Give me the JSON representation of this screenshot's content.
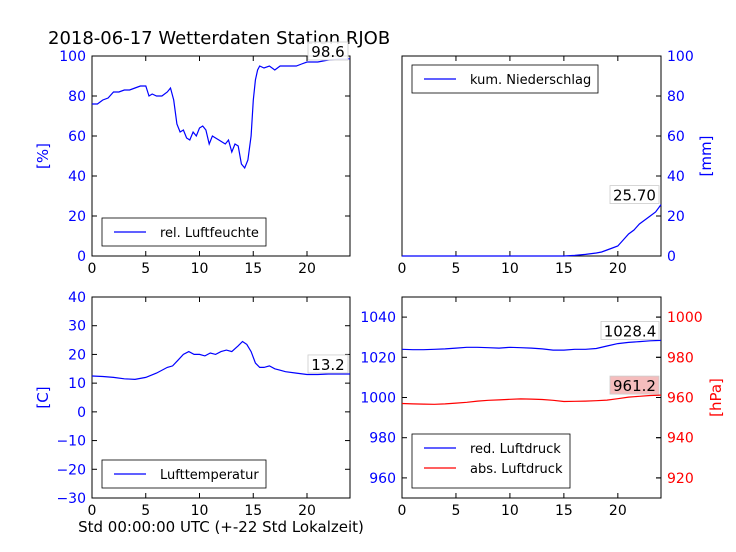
{
  "title": "2018-06-17 Wetterdaten Station RJOB",
  "colors": {
    "blue": "#0000ff",
    "red": "#ff0000",
    "annot_bg": "#f4b6b6"
  },
  "chart_data": [
    {
      "type": "line",
      "panel": "top-left",
      "ylabel": "[%]",
      "xlim": [
        0,
        24
      ],
      "ylim": [
        0,
        100
      ],
      "xticks": [
        0,
        5,
        10,
        15,
        20
      ],
      "yticks": [
        0,
        20,
        40,
        60,
        80,
        100
      ],
      "legend": "rel. Luftfeuchte",
      "legend_placement": "lower-center",
      "annotation": "98.6",
      "series": [
        {
          "name": "rel. Luftfeuchte",
          "color": "#0000ff",
          "x": [
            0,
            0.5,
            1,
            1.5,
            2,
            2.5,
            3,
            3.5,
            4,
            4.5,
            5,
            5.3,
            5.6,
            6,
            6.5,
            7,
            7.3,
            7.6,
            7.9,
            8.2,
            8.5,
            8.8,
            9.1,
            9.4,
            9.7,
            10,
            10.3,
            10.6,
            10.9,
            11.2,
            11.5,
            11.8,
            12.1,
            12.4,
            12.7,
            13,
            13.3,
            13.6,
            13.9,
            14.2,
            14.5,
            14.8,
            15.0,
            15.2,
            15.4,
            15.6,
            16,
            16.5,
            17,
            17.5,
            18,
            18.5,
            19,
            19.5,
            20,
            21,
            22,
            23,
            24
          ],
          "y": [
            76,
            76,
            78,
            79,
            82,
            82,
            83,
            83,
            84,
            85,
            85,
            80,
            81,
            80,
            80,
            82,
            84,
            78,
            66,
            62,
            63,
            59,
            58,
            62,
            60,
            64,
            65,
            63,
            56,
            60,
            59,
            58,
            57,
            56,
            58,
            52,
            56,
            55,
            46,
            44,
            48,
            60,
            78,
            88,
            93,
            95,
            94,
            95,
            93,
            95,
            95,
            95,
            95,
            96,
            97,
            97,
            98,
            98.5,
            98.6
          ]
        }
      ]
    },
    {
      "type": "line",
      "panel": "top-right",
      "ylabel": "[mm]",
      "xlim": [
        0,
        24
      ],
      "ylim": [
        0,
        100
      ],
      "xticks": [
        0,
        5,
        10,
        15,
        20
      ],
      "yticks": [
        0,
        20,
        40,
        60,
        80,
        100
      ],
      "legend": "kum. Niederschlag",
      "legend_placement": "upper-center",
      "annotation": "25.70",
      "series": [
        {
          "name": "kum. Niederschlag",
          "color": "#0000ff",
          "x": [
            0,
            15,
            16,
            17,
            18,
            18.5,
            19,
            19.5,
            20,
            20.5,
            21,
            21.5,
            22,
            22.5,
            23,
            23.5,
            24
          ],
          "y": [
            0,
            0,
            0.3,
            0.8,
            1.5,
            2,
            3,
            4,
            5,
            8,
            11,
            13,
            16,
            18,
            20,
            22,
            25.7
          ]
        }
      ]
    },
    {
      "type": "line",
      "panel": "bottom-left",
      "ylabel": "[C]",
      "xlabel": "Std 00:00:00 UTC (+-22 Std Lokalzeit)",
      "xlim": [
        0,
        24
      ],
      "ylim": [
        -30,
        40
      ],
      "xticks": [
        0,
        5,
        10,
        15,
        20
      ],
      "yticks": [
        -30,
        -20,
        -10,
        0,
        10,
        20,
        30,
        40
      ],
      "legend": "Lufttemperatur",
      "legend_placement": "lower-center",
      "annotation": "13.2",
      "series": [
        {
          "name": "Lufttemperatur",
          "color": "#0000ff",
          "x": [
            0,
            1,
            2,
            3,
            4,
            5,
            6,
            7,
            7.5,
            8,
            8.5,
            9,
            9.5,
            10,
            10.5,
            11,
            11.5,
            12,
            12.5,
            13,
            13.3,
            13.6,
            14,
            14.4,
            14.8,
            15.2,
            15.6,
            16,
            16.5,
            17,
            17.5,
            18,
            19,
            20,
            21,
            22,
            23,
            24
          ],
          "y": [
            12.5,
            12.3,
            12,
            11.5,
            11.3,
            12,
            13.5,
            15.5,
            16,
            18,
            20,
            21,
            20,
            20,
            19.5,
            20.5,
            20,
            21,
            21.5,
            21,
            22,
            23,
            24.5,
            23.5,
            21,
            17,
            15.5,
            15.5,
            16,
            15,
            14.5,
            14,
            13.5,
            13,
            13,
            13.2,
            13.2,
            13.2
          ]
        }
      ]
    },
    {
      "type": "line",
      "panel": "bottom-right",
      "ylabel": "[hPa]",
      "xlim": [
        0,
        24
      ],
      "ylim": [
        950,
        1050
      ],
      "ylim_right": [
        910,
        1010
      ],
      "xticks": [
        0,
        5,
        10,
        15,
        20
      ],
      "yticks": [
        960,
        980,
        1000,
        1020,
        1040
      ],
      "yticks_right": [
        920,
        940,
        960,
        980,
        1000
      ],
      "legend_placement": "lower-left",
      "annotations": [
        "1028.4",
        "961.2"
      ],
      "series": [
        {
          "name": "red. Luftdruck",
          "color": "#0000ff",
          "axis": "left",
          "x": [
            0,
            1,
            2,
            3,
            4,
            5,
            6,
            7,
            8,
            9,
            10,
            11,
            12,
            13,
            14,
            15,
            16,
            17,
            18,
            19,
            20,
            21,
            22,
            23,
            24
          ],
          "y": [
            1024,
            1023.8,
            1023.8,
            1024,
            1024.2,
            1024.6,
            1025,
            1025,
            1024.8,
            1024.6,
            1025,
            1024.8,
            1024.6,
            1024.2,
            1023.6,
            1023.6,
            1024,
            1024,
            1024.4,
            1025.6,
            1026.8,
            1027.4,
            1027.8,
            1028.2,
            1028.4
          ]
        },
        {
          "name": "abs. Luftdruck",
          "color": "#ff0000",
          "axis": "right",
          "x": [
            0,
            1,
            2,
            3,
            4,
            5,
            6,
            7,
            8,
            9,
            10,
            11,
            12,
            13,
            14,
            15,
            16,
            17,
            18,
            19,
            20,
            21,
            22,
            23,
            24
          ],
          "y": [
            957,
            956.8,
            956.7,
            956.6,
            956.8,
            957.2,
            957.6,
            958.2,
            958.6,
            958.8,
            959.1,
            959.3,
            959.2,
            959,
            958.6,
            958,
            958.1,
            958.2,
            958.4,
            958.7,
            959.4,
            960.2,
            960.6,
            961,
            961.2
          ]
        }
      ]
    }
  ]
}
